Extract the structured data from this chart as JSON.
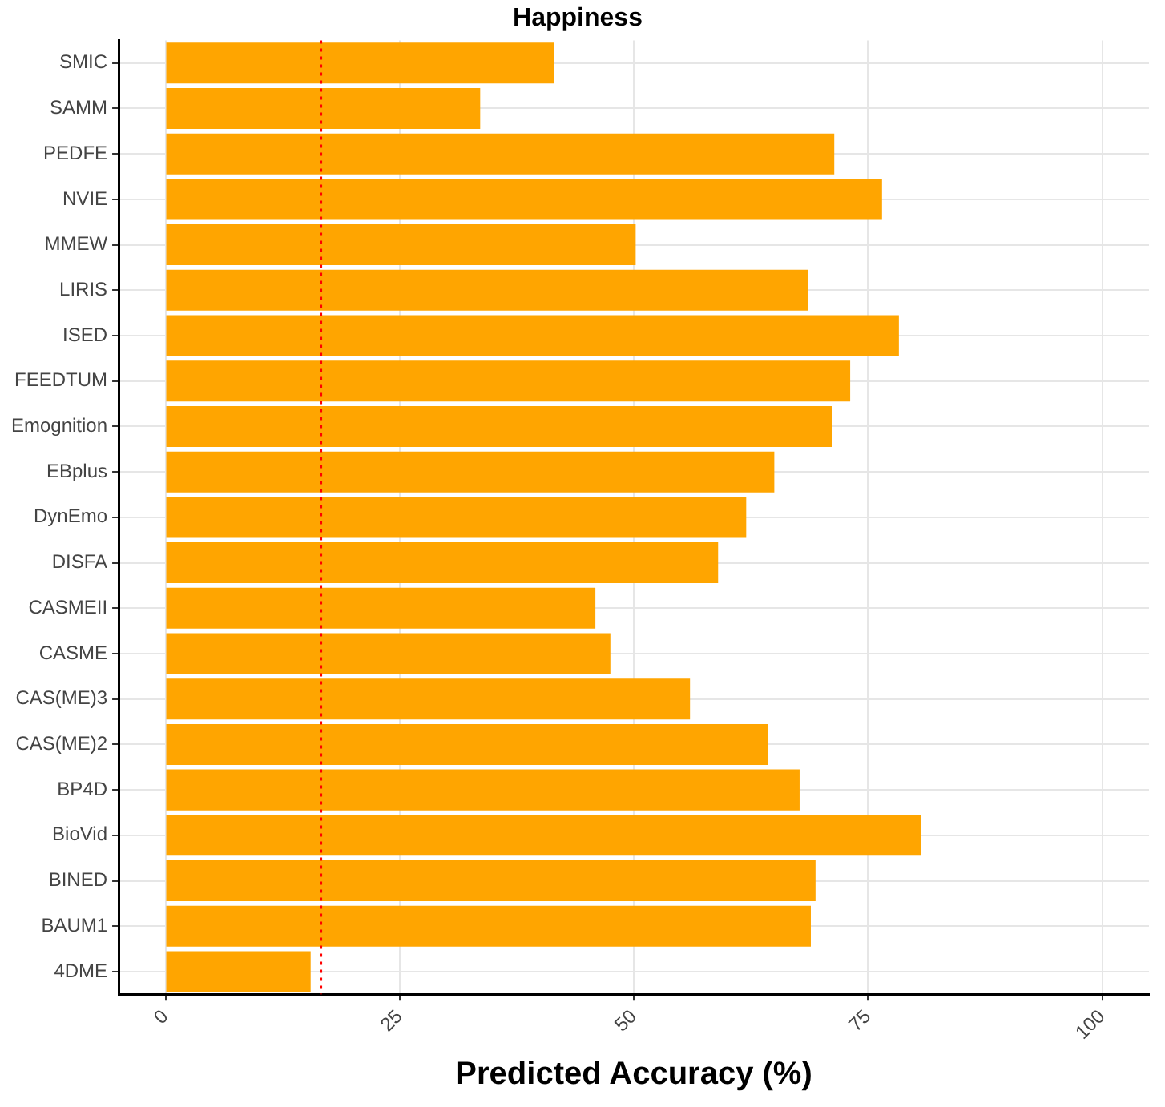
{
  "chart_data": {
    "type": "bar",
    "orientation": "horizontal",
    "title": "Happiness",
    "xlabel": "Predicted Accuracy (%)",
    "categories": [
      "SMIC",
      "SAMM",
      "PEDFE",
      "NVIE",
      "MMEW",
      "LIRIS",
      "ISED",
      "FEEDTUM",
      "Emognition",
      "EBplus",
      "DynEmo",
      "DISFA",
      "CASMEII",
      "CASME",
      "CAS(ME)3",
      "CAS(ME)2",
      "BP4D",
      "BioVid",
      "BINED",
      "BAUM1",
      "4DME"
    ],
    "values": [
      41.5,
      33.6,
      71.4,
      76.5,
      50.2,
      68.6,
      78.3,
      73.1,
      71.2,
      65.0,
      62.0,
      59.0,
      45.9,
      47.5,
      56.0,
      64.3,
      67.7,
      80.7,
      69.4,
      68.9,
      15.5
    ],
    "color": "#ffa500",
    "xlim": [
      -5,
      105
    ],
    "xticks": [
      0,
      25,
      50,
      75,
      100
    ],
    "grid": true,
    "legend": false,
    "ref_lines": [
      {
        "axis": "x",
        "value": 16.6,
        "color": "#ff0000",
        "line_style": "dotted"
      }
    ]
  }
}
